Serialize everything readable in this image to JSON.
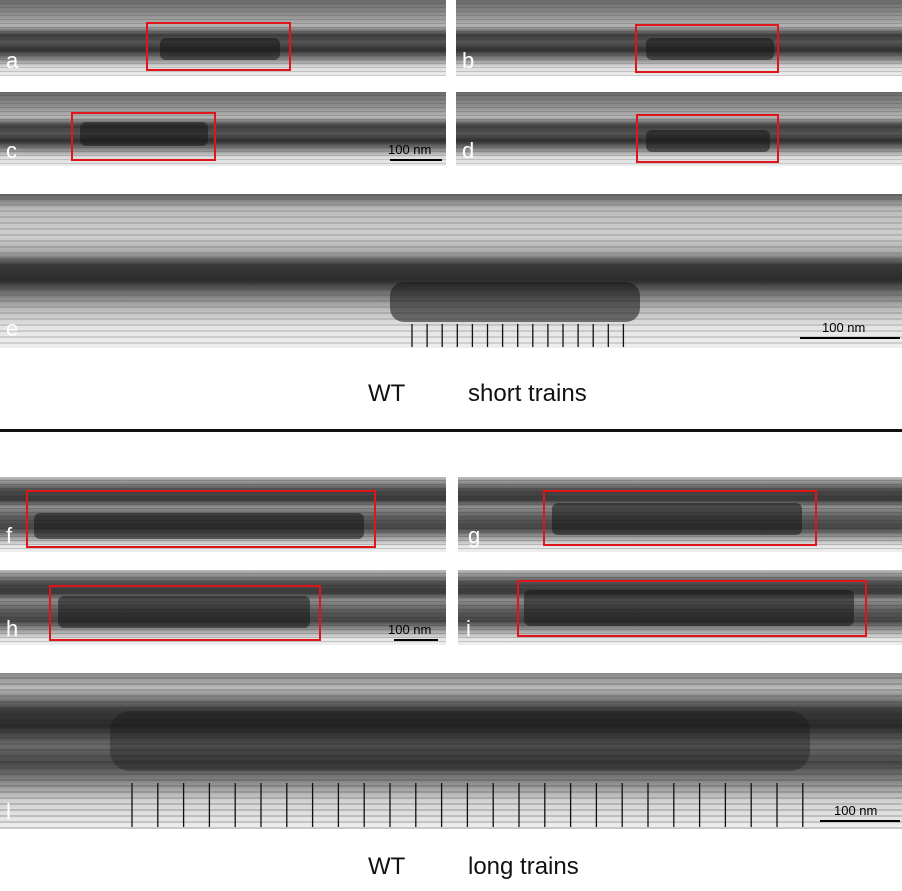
{
  "short_trains": {
    "panels": [
      {
        "id": "a",
        "label": "a"
      },
      {
        "id": "b",
        "label": "b"
      },
      {
        "id": "c",
        "label": "c"
      },
      {
        "id": "d",
        "label": "d"
      },
      {
        "id": "e",
        "label": "e"
      }
    ],
    "scale_small": "100 nm",
    "scale_e": "100 nm",
    "caption_strain": "WT",
    "caption_type": "short trains",
    "tick_count_e": 15
  },
  "long_trains": {
    "panels": [
      {
        "id": "f",
        "label": "f"
      },
      {
        "id": "g",
        "label": "g"
      },
      {
        "id": "h",
        "label": "h"
      },
      {
        "id": "i",
        "label": "i"
      },
      {
        "id": "l",
        "label": "l"
      }
    ],
    "scale_small": "100 nm",
    "scale_l": "100 nm",
    "caption_strain": "WT",
    "caption_type": "long trains",
    "tick_count_l": 27
  },
  "colors": {
    "box": "#e0141b",
    "divider": "#111111"
  }
}
